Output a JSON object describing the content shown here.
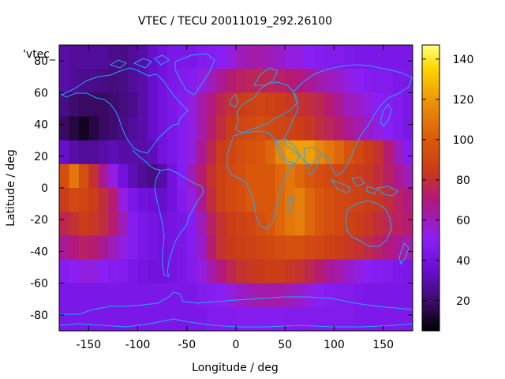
{
  "chart_data": {
    "type": "heatmap",
    "title": "VTEC / TECU 20011019_292.26100",
    "xlabel": "Longitude / deg",
    "ylabel": "Latitude / deg",
    "corner_label": "'vtec_",
    "xlim": [
      -180,
      180
    ],
    "ylim": [
      -90,
      90
    ],
    "xticks": [
      -150,
      -100,
      -50,
      0,
      50,
      100,
      150
    ],
    "yticks": [
      -80,
      -60,
      -40,
      -20,
      0,
      20,
      40,
      60,
      80
    ],
    "colorbar": {
      "range": [
        5,
        147
      ],
      "ticks": [
        20,
        40,
        60,
        80,
        100,
        120,
        140
      ]
    },
    "colormap": [
      "#000000",
      "#3b0b66",
      "#6c0fd6",
      "#8a1ff5",
      "#b2187c",
      "#c93b18",
      "#d9560b",
      "#e8890a",
      "#ffd600",
      "#ffff80"
    ],
    "coastline_color": "#1ea8ff",
    "grid": false,
    "values": [
      [
        30,
        28,
        28,
        28,
        28,
        26,
        25,
        28,
        30,
        35,
        40,
        45,
        45,
        45,
        48,
        50,
        52,
        55,
        60,
        62,
        62,
        60,
        58,
        55,
        55,
        52,
        50,
        48,
        48,
        46,
        45,
        45,
        45,
        45,
        45,
        45
      ],
      [
        30,
        28,
        26,
        26,
        25,
        24,
        25,
        28,
        30,
        35,
        40,
        45,
        48,
        50,
        55,
        60,
        65,
        70,
        72,
        74,
        75,
        74,
        72,
        70,
        68,
        65,
        62,
        60,
        58,
        55,
        52,
        50,
        48,
        48,
        46,
        45
      ],
      [
        25,
        22,
        20,
        20,
        20,
        22,
        24,
        26,
        30,
        35,
        40,
        45,
        50,
        55,
        62,
        68,
        75,
        80,
        85,
        88,
        90,
        88,
        85,
        82,
        80,
        78,
        75,
        70,
        65,
        60,
        58,
        55,
        52,
        50,
        48,
        45
      ],
      [
        20,
        15,
        10,
        15,
        20,
        22,
        25,
        28,
        30,
        35,
        40,
        45,
        50,
        55,
        62,
        70,
        78,
        85,
        90,
        92,
        95,
        92,
        90,
        88,
        85,
        82,
        78,
        74,
        70,
        65,
        62,
        58,
        55,
        52,
        48,
        45
      ],
      [
        35,
        30,
        28,
        28,
        30,
        32,
        30,
        30,
        30,
        32,
        40,
        45,
        50,
        55,
        65,
        75,
        85,
        90,
        95,
        98,
        100,
        105,
        115,
        120,
        120,
        120,
        115,
        110,
        105,
        98,
        92,
        85,
        80,
        70,
        60,
        50
      ],
      [
        95,
        110,
        95,
        80,
        65,
        55,
        40,
        32,
        28,
        25,
        30,
        40,
        50,
        60,
        70,
        80,
        88,
        92,
        95,
        100,
        100,
        100,
        105,
        110,
        105,
        100,
        95,
        92,
        90,
        88,
        85,
        82,
        78,
        72,
        65,
        60
      ],
      [
        85,
        92,
        90,
        85,
        78,
        70,
        55,
        45,
        40,
        38,
        35,
        40,
        48,
        55,
        65,
        78,
        88,
        92,
        95,
        100,
        100,
        100,
        105,
        110,
        112,
        105,
        100,
        95,
        92,
        90,
        88,
        85,
        82,
        78,
        72,
        68
      ],
      [
        75,
        80,
        85,
        82,
        78,
        70,
        60,
        50,
        45,
        42,
        40,
        42,
        45,
        50,
        60,
        72,
        80,
        85,
        88,
        90,
        95,
        100,
        105,
        110,
        112,
        105,
        100,
        95,
        92,
        88,
        85,
        82,
        78,
        75,
        72,
        70
      ],
      [
        65,
        68,
        72,
        70,
        65,
        60,
        55,
        50,
        45,
        42,
        40,
        42,
        45,
        50,
        58,
        70,
        80,
        84,
        86,
        88,
        90,
        92,
        94,
        96,
        95,
        92,
        90,
        88,
        85,
        82,
        80,
        76,
        72,
        68,
        65,
        62
      ],
      [
        50,
        52,
        55,
        55,
        52,
        50,
        48,
        45,
        42,
        40,
        40,
        42,
        45,
        48,
        55,
        62,
        68,
        75,
        80,
        82,
        84,
        85,
        85,
        82,
        80,
        75,
        70,
        65,
        62,
        58,
        55,
        52,
        50,
        48,
        46,
        45
      ],
      [
        45,
        45,
        45,
        45,
        45,
        45,
        45,
        45,
        45,
        45,
        45,
        45,
        45,
        45,
        48,
        50,
        52,
        55,
        58,
        60,
        62,
        62,
        62,
        60,
        58,
        55,
        52,
        50,
        48,
        48,
        46,
        45,
        45,
        45,
        45,
        45
      ],
      [
        45,
        45,
        45,
        45,
        45,
        45,
        45,
        45,
        45,
        45,
        45,
        45,
        45,
        45,
        45,
        48,
        48,
        48,
        50,
        50,
        50,
        50,
        50,
        48,
        48,
        48,
        48,
        48,
        48,
        48,
        46,
        46,
        46,
        46,
        46,
        46
      ]
    ]
  }
}
